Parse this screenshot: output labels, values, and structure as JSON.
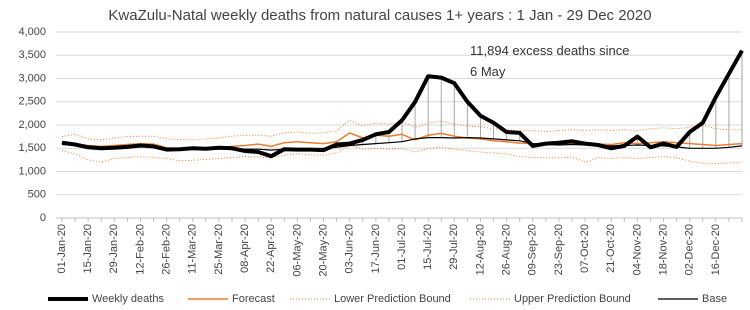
{
  "chart_data": {
    "type": "line",
    "title": "KwaZulu-Natal weekly deaths from natural causes 1+ years : 1 Jan - 29 Dec 2020",
    "annotation": "11,894 excess deaths since 6 May",
    "categories": [
      "01-Jan-20",
      null,
      "15-Jan-20",
      null,
      "29-Jan-20",
      null,
      "12-Feb-20",
      null,
      "26-Feb-20",
      null,
      "11-Mar-20",
      null,
      "25-Mar-20",
      null,
      "08-Apr-20",
      null,
      "22-Apr-20",
      null,
      "06-May-20",
      null,
      "20-May-20",
      null,
      "03-Jun-20",
      null,
      "17-Jun-20",
      null,
      "01-Jul-20",
      null,
      "15-Jul-20",
      null,
      "29-Jul-20",
      null,
      "12-Aug-20",
      null,
      "26-Aug-20",
      null,
      "09-Sep-20",
      null,
      "23-Sep-20",
      null,
      "07-Oct-20",
      null,
      "21-Oct-20",
      null,
      "04-Nov-20",
      null,
      "18-Nov-20",
      null,
      "02-Dec-20",
      null,
      "16-Dec-20",
      null,
      null
    ],
    "series": [
      {
        "name": "Weekly deaths",
        "color": "#000000",
        "width": 4,
        "dash": "none",
        "values": [
          1620,
          1580,
          1520,
          1500,
          1510,
          1530,
          1560,
          1540,
          1470,
          1480,
          1500,
          1490,
          1510,
          1500,
          1440,
          1420,
          1330,
          1480,
          1470,
          1470,
          1460,
          1580,
          1600,
          1680,
          1800,
          1850,
          2100,
          2500,
          3050,
          3020,
          2900,
          2500,
          2200,
          2050,
          1850,
          1830,
          1550,
          1600,
          1620,
          1650,
          1600,
          1570,
          1500,
          1550,
          1750,
          1520,
          1600,
          1530,
          1850,
          2050,
          2600,
          3100,
          3600
        ]
      },
      {
        "name": "Forecast",
        "color": "#ed7d31",
        "width": 1.5,
        "dash": "none",
        "values": [
          1600,
          1590,
          1560,
          1540,
          1560,
          1580,
          1600,
          1590,
          1510,
          1500,
          1490,
          1500,
          1510,
          1540,
          1560,
          1590,
          1540,
          1620,
          1640,
          1620,
          1600,
          1640,
          1830,
          1720,
          1780,
          1760,
          1800,
          1680,
          1780,
          1820,
          1760,
          1720,
          1700,
          1660,
          1640,
          1610,
          1600,
          1580,
          1590,
          1610,
          1600,
          1590,
          1580,
          1620,
          1600,
          1620,
          1640,
          1620,
          1600,
          1580,
          1560,
          1580,
          1600
        ]
      },
      {
        "name": "Lower Prediction Bound",
        "color": "#ed7d31",
        "width": 1,
        "dash": "1 2",
        "values": [
          1450,
          1380,
          1250,
          1200,
          1280,
          1300,
          1320,
          1300,
          1280,
          1230,
          1240,
          1260,
          1280,
          1300,
          1320,
          1310,
          1300,
          1350,
          1380,
          1360,
          1350,
          1400,
          1560,
          1480,
          1500,
          1480,
          1500,
          1420,
          1500,
          1520,
          1480,
          1450,
          1420,
          1400,
          1380,
          1320,
          1300,
          1300,
          1290,
          1310,
          1200,
          1300,
          1280,
          1300,
          1280,
          1300,
          1320,
          1300,
          1220,
          1180,
          1170,
          1180,
          1200
        ]
      },
      {
        "name": "Upper Prediction Bound",
        "color": "#ed7d31",
        "width": 1,
        "dash": "1 2",
        "values": [
          1750,
          1800,
          1700,
          1680,
          1720,
          1750,
          1760,
          1760,
          1700,
          1690,
          1680,
          1700,
          1720,
          1760,
          1780,
          1780,
          1760,
          1830,
          1850,
          1820,
          1830,
          1880,
          2100,
          1980,
          2040,
          2020,
          2060,
          1950,
          2040,
          2080,
          2020,
          1980,
          1960,
          1920,
          1900,
          1880,
          1880,
          1860,
          1880,
          1900,
          1880,
          1900,
          1880,
          1900,
          1880,
          1920,
          1940,
          1920,
          1950,
          2000,
          1920,
          1900,
          1900
        ]
      },
      {
        "name": "Base",
        "color": "#000000",
        "width": 1.2,
        "dash": "none",
        "values": [
          1580,
          1560,
          1540,
          1520,
          1500,
          1520,
          1540,
          1520,
          1500,
          1490,
          1500,
          1500,
          1510,
          1500,
          1480,
          1480,
          1460,
          1480,
          1480,
          1490,
          1500,
          1520,
          1560,
          1580,
          1600,
          1620,
          1640,
          1700,
          1730,
          1730,
          1720,
          1730,
          1720,
          1700,
          1680,
          1660,
          1600,
          1580,
          1570,
          1580,
          1570,
          1560,
          1550,
          1560,
          1570,
          1560,
          1550,
          1530,
          1500,
          1500,
          1500,
          1520,
          1550
        ]
      }
    ],
    "excess_line_color": "#a6a6a6",
    "ylim": [
      0,
      4000
    ],
    "yticks": [
      0,
      {
        "value": 500,
        "label": "500"
      },
      {
        "value": 1000,
        "label": "1,000"
      },
      {
        "value": 1500,
        "label": "1,500"
      },
      {
        "value": 2000,
        "label": "2,000"
      },
      {
        "value": 2500,
        "label": "2,500"
      },
      {
        "value": 3000,
        "label": "3,000"
      },
      {
        "value": 3500,
        "label": "3,500"
      },
      {
        "value": 4000,
        "label": "4,000"
      }
    ],
    "grid": true
  }
}
